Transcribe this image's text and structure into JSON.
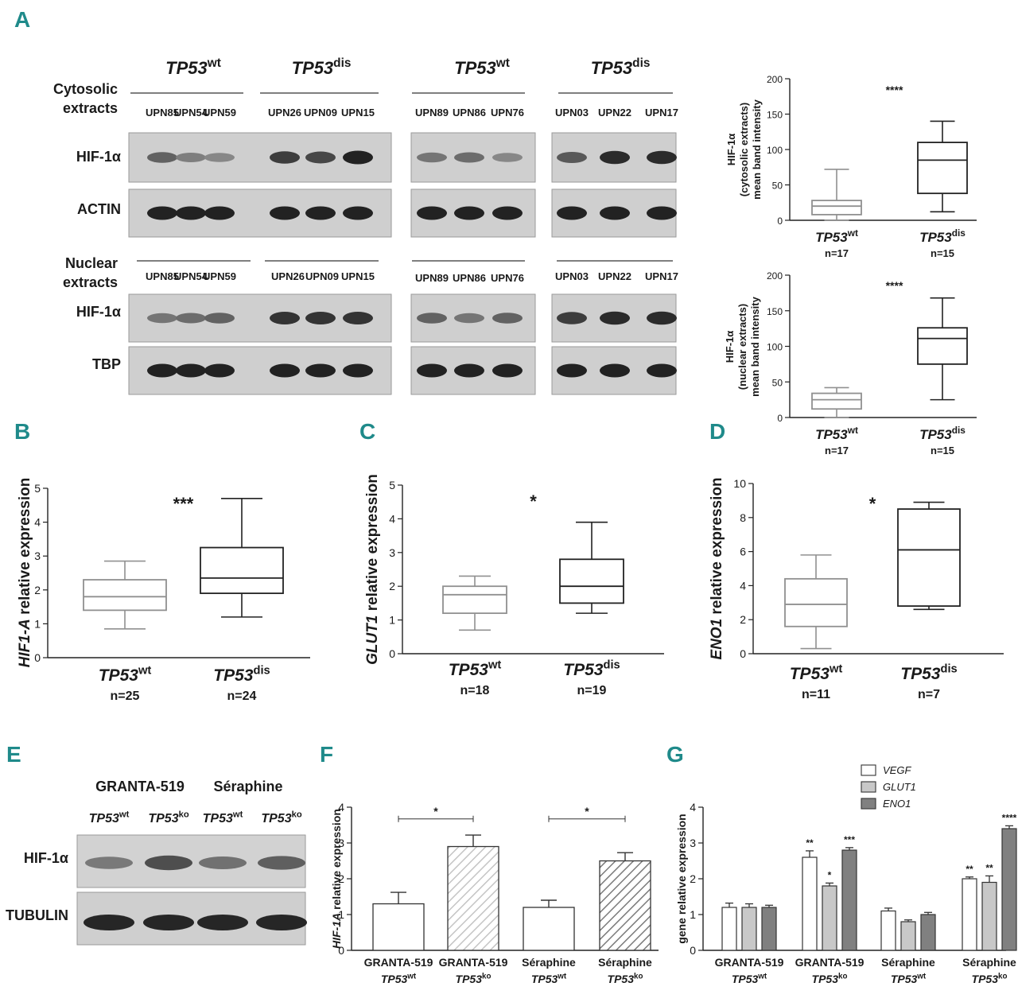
{
  "panels": {
    "A": "A",
    "B": "B",
    "C": "C",
    "D": "D",
    "E": "E",
    "F": "F",
    "G": "G"
  },
  "panel_a": {
    "row_labels": {
      "cyto_line1": "Cytosolic",
      "cyto_line2": "extracts",
      "nuc_line1": "Nuclear",
      "nuc_line2": "extracts"
    },
    "group_headers": [
      {
        "base": "TP53",
        "sup": "wt"
      },
      {
        "base": "TP53",
        "sup": "dis"
      },
      {
        "base": "TP53",
        "sup": "wt"
      },
      {
        "base": "TP53",
        "sup": "dis"
      }
    ],
    "lanes_cyto": [
      [
        "UPN85",
        "UPN54",
        "UPN59"
      ],
      [
        "UPN26",
        "UPN09",
        "UPN15"
      ],
      [
        "UPN89",
        "UPN86",
        "UPN76"
      ],
      [
        "UPN03",
        "UPN22",
        "UPN17"
      ]
    ],
    "lanes_nuc": [
      [
        "UPN85",
        "UPN54",
        "UPN59"
      ],
      [
        "UPN26",
        "UPN09",
        "UPN15"
      ],
      [
        "UPN89",
        "UPN86",
        "UPN76"
      ],
      [
        "UPN03",
        "UPN22",
        "UPN17"
      ]
    ],
    "blot_labels": {
      "hif_cyto": "HIF-1α",
      "actin": "ACTIN",
      "hif_nuc": "HIF-1α",
      "tbp": "TBP"
    },
    "blot_intensity": {
      "hif_cyto": [
        [
          0.55,
          0.4,
          0.35
        ],
        [
          0.75,
          0.7,
          0.9
        ],
        [
          0.45,
          0.5,
          0.35
        ],
        [
          0.6,
          0.85,
          0.85
        ]
      ],
      "actin": [
        [
          0.9,
          0.9,
          0.9
        ],
        [
          0.9,
          0.9,
          0.9
        ],
        [
          0.9,
          0.9,
          0.9
        ],
        [
          0.9,
          0.9,
          0.9
        ]
      ],
      "hif_nuc": [
        [
          0.45,
          0.5,
          0.55
        ],
        [
          0.8,
          0.8,
          0.8
        ],
        [
          0.55,
          0.45,
          0.55
        ],
        [
          0.75,
          0.85,
          0.85
        ]
      ],
      "tbp": [
        [
          0.9,
          0.9,
          0.9
        ],
        [
          0.9,
          0.9,
          0.9
        ],
        [
          0.9,
          0.9,
          0.9
        ],
        [
          0.9,
          0.9,
          0.9
        ]
      ]
    }
  },
  "panel_e": {
    "cell_lines": [
      "GRANTA-519",
      "Séraphine"
    ],
    "lanes": [
      {
        "base": "TP53",
        "sup": "wt"
      },
      {
        "base": "TP53",
        "sup": "ko"
      },
      {
        "base": "TP53",
        "sup": "wt"
      },
      {
        "base": "TP53",
        "sup": "ko"
      }
    ],
    "blot_labels": {
      "hif": "HIF-1α",
      "tub": "TUBULIN"
    },
    "blot_intensity": {
      "hif": [
        0.45,
        0.7,
        0.5,
        0.6
      ],
      "tub": [
        0.9,
        0.9,
        0.9,
        0.9
      ]
    }
  },
  "chart_data": [
    {
      "id": "A-cyto",
      "type": "box",
      "ylabel_lines": [
        "HIF-1α",
        "(cytosolic extracts)",
        "mean band intensity"
      ],
      "ylim": [
        0,
        200
      ],
      "yticks": [
        0,
        50,
        100,
        150,
        200
      ],
      "significance": "****",
      "groups": [
        {
          "base": "TP53",
          "sup": "wt",
          "n": "n=17",
          "min": 0,
          "q1": 8,
          "median": 20,
          "q3": 28,
          "max": 72,
          "color": "#909090"
        },
        {
          "base": "TP53",
          "sup": "dis",
          "n": "n=15",
          "min": 12,
          "q1": 38,
          "median": 85,
          "q3": 110,
          "max": 140,
          "color": "#222222"
        }
      ]
    },
    {
      "id": "A-nuc",
      "type": "box",
      "ylabel_lines": [
        "HIF-1α",
        "(nuclear extracts)",
        "mean band intensity"
      ],
      "ylim": [
        0,
        200
      ],
      "yticks": [
        0,
        50,
        100,
        150,
        200
      ],
      "significance": "****",
      "groups": [
        {
          "base": "TP53",
          "sup": "wt",
          "n": "n=17",
          "min": 0,
          "q1": 12,
          "median": 25,
          "q3": 34,
          "max": 42,
          "color": "#909090"
        },
        {
          "base": "TP53",
          "sup": "dis",
          "n": "n=15",
          "min": 25,
          "q1": 75,
          "median": 111,
          "q3": 126,
          "max": 168,
          "color": "#222222"
        }
      ]
    },
    {
      "id": "B",
      "type": "box",
      "ylabel_italic": "HIF1-A",
      "ylabel_rest": " relative expression",
      "ylim": [
        0,
        5
      ],
      "yticks": [
        0,
        1,
        2,
        3,
        4,
        5
      ],
      "significance": "***",
      "groups": [
        {
          "base": "TP53",
          "sup": "wt",
          "n": "n=25",
          "min": 0.85,
          "q1": 1.4,
          "median": 1.8,
          "q3": 2.3,
          "max": 2.85,
          "color": "#909090"
        },
        {
          "base": "TP53",
          "sup": "dis",
          "n": "n=24",
          "min": 1.2,
          "q1": 1.9,
          "median": 2.35,
          "q3": 3.25,
          "max": 4.7,
          "color": "#222222"
        }
      ]
    },
    {
      "id": "C",
      "type": "box",
      "ylabel_italic": "GLUT1",
      "ylabel_rest": " relative expression",
      "ylim": [
        0,
        5
      ],
      "yticks": [
        0,
        1,
        2,
        3,
        4,
        5
      ],
      "significance": "*",
      "groups": [
        {
          "base": "TP53",
          "sup": "wt",
          "n": "n=18",
          "min": 0.7,
          "q1": 1.2,
          "median": 1.75,
          "q3": 2.0,
          "max": 2.3,
          "color": "#909090"
        },
        {
          "base": "TP53",
          "sup": "dis",
          "n": "n=19",
          "min": 1.2,
          "q1": 1.5,
          "median": 2.0,
          "q3": 2.8,
          "max": 3.9,
          "color": "#222222"
        }
      ]
    },
    {
      "id": "D",
      "type": "box",
      "ylabel_italic": "ENO1",
      "ylabel_rest": " relative expression",
      "ylim": [
        0,
        10
      ],
      "yticks": [
        0,
        2,
        4,
        6,
        8,
        10
      ],
      "significance": "*",
      "groups": [
        {
          "base": "TP53",
          "sup": "wt",
          "n": "n=11",
          "min": 0.3,
          "q1": 1.6,
          "median": 2.9,
          "q3": 4.4,
          "max": 5.8,
          "color": "#909090"
        },
        {
          "base": "TP53",
          "sup": "dis",
          "n": "n=7",
          "min": 2.6,
          "q1": 2.8,
          "median": 6.1,
          "q3": 8.5,
          "max": 8.9,
          "color": "#222222"
        }
      ]
    },
    {
      "id": "F",
      "type": "bar",
      "ylabel_italic": "HIF-1A",
      "ylabel_rest": " relative expression",
      "ylim": [
        0,
        4
      ],
      "yticks": [
        0,
        1,
        2,
        3,
        4
      ],
      "categories": [
        {
          "line1": "GRANTA-519",
          "base": "TP53",
          "sup": "wt"
        },
        {
          "line1": "GRANTA-519",
          "base": "TP53",
          "sup": "ko"
        },
        {
          "line1": "Séraphine",
          "base": "TP53",
          "sup": "wt"
        },
        {
          "line1": "Séraphine",
          "base": "TP53",
          "sup": "ko"
        }
      ],
      "values": [
        1.3,
        2.9,
        1.2,
        2.5
      ],
      "errors": [
        0.32,
        0.32,
        0.2,
        0.23
      ],
      "fills": [
        "white",
        "hatch-light",
        "white",
        "hatch-dark"
      ],
      "brackets": [
        {
          "from": 0,
          "to": 1,
          "y": 3.85,
          "label": "*"
        },
        {
          "from": 2,
          "to": 3,
          "y": 3.85,
          "label": "*"
        }
      ]
    },
    {
      "id": "G",
      "type": "bar",
      "ylabel": "gene relative expression",
      "ylim": [
        0,
        4
      ],
      "yticks": [
        0,
        1,
        2,
        3,
        4
      ],
      "categories": [
        {
          "line1": "GRANTA-519",
          "base": "TP53",
          "sup": "wt"
        },
        {
          "line1": "GRANTA-519",
          "base": "TP53",
          "sup": "ko"
        },
        {
          "line1": "Séraphine",
          "base": "TP53",
          "sup": "wt"
        },
        {
          "line1": "Séraphine",
          "base": "TP53",
          "sup": "ko"
        }
      ],
      "series": [
        {
          "name": "VEGF",
          "color": "#ffffff",
          "values": [
            1.2,
            2.6,
            1.1,
            2.0
          ],
          "errors": [
            0.12,
            0.18,
            0.08,
            0.05
          ],
          "sig": [
            "",
            "**",
            "",
            "**"
          ]
        },
        {
          "name": "GLUT1",
          "color": "#c8c8c8",
          "values": [
            1.2,
            1.8,
            0.8,
            1.9
          ],
          "errors": [
            0.1,
            0.08,
            0.05,
            0.18
          ],
          "sig": [
            "",
            "*",
            "",
            "**"
          ]
        },
        {
          "name": "ENO1",
          "color": "#808080",
          "values": [
            1.2,
            2.8,
            1.0,
            3.4
          ],
          "errors": [
            0.06,
            0.07,
            0.06,
            0.08
          ],
          "sig": [
            "",
            "***",
            "",
            "****"
          ]
        }
      ]
    }
  ]
}
